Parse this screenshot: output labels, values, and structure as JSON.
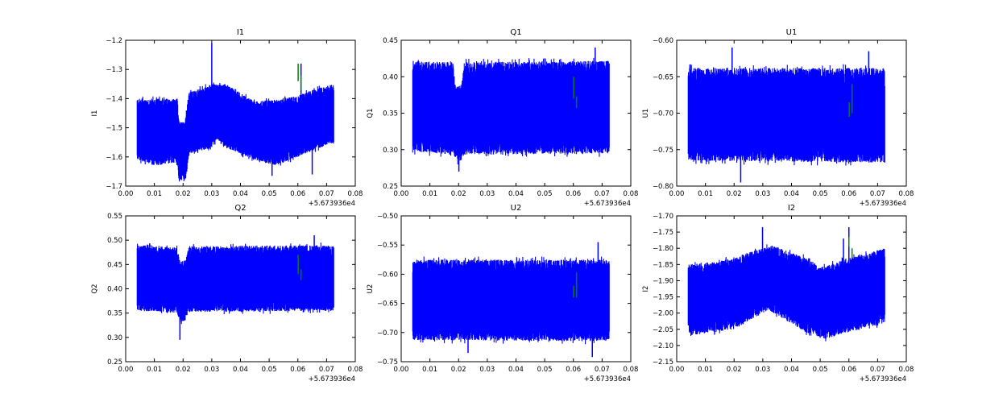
{
  "offset_label": "+5.673936e4",
  "colors": {
    "series": "#0000ff",
    "markers": "#008000",
    "axes": "#000000"
  },
  "chart_data": [
    {
      "type": "line",
      "title": "I1",
      "ylabel": "I1",
      "xlim": [
        0,
        0.08
      ],
      "ylim": [
        -1.7,
        -1.2
      ],
      "xticks": [
        "0.00",
        "0.01",
        "0.02",
        "0.03",
        "0.04",
        "0.05",
        "0.06",
        "0.07",
        "0.08"
      ],
      "yticks": [
        -1.7,
        -1.6,
        -1.5,
        -1.4,
        -1.3,
        -1.2
      ],
      "ytick_labels": [
        "−1.7",
        "−1.6",
        "−1.5",
        "−1.4",
        "−1.3",
        "−1.2"
      ],
      "x_range": [
        0.004,
        0.0725
      ],
      "upper": [
        [
          0.004,
          -1.4
        ],
        [
          0.018,
          -1.4
        ],
        [
          0.0185,
          -1.48
        ],
        [
          0.0205,
          -1.48
        ],
        [
          0.022,
          -1.38
        ],
        [
          0.03,
          -1.35
        ],
        [
          0.035,
          -1.35
        ],
        [
          0.045,
          -1.41
        ],
        [
          0.055,
          -1.4
        ],
        [
          0.06,
          -1.39
        ],
        [
          0.065,
          -1.37
        ],
        [
          0.0725,
          -1.35
        ]
      ],
      "lower": [
        [
          0.004,
          -1.61
        ],
        [
          0.01,
          -1.63
        ],
        [
          0.018,
          -1.62
        ],
        [
          0.0185,
          -1.68
        ],
        [
          0.021,
          -1.68
        ],
        [
          0.022,
          -1.59
        ],
        [
          0.03,
          -1.57
        ],
        [
          0.032,
          -1.54
        ],
        [
          0.035,
          -1.57
        ],
        [
          0.045,
          -1.61
        ],
        [
          0.052,
          -1.63
        ],
        [
          0.06,
          -1.6
        ],
        [
          0.065,
          -1.58
        ],
        [
          0.0725,
          -1.55
        ]
      ],
      "spikes": [
        [
          0.03,
          -1.21
        ],
        [
          0.0611,
          -1.28
        ],
        [
          0.065,
          -1.66
        ],
        [
          0.051,
          -1.665
        ]
      ],
      "green": [
        [
          0.0601,
          -1.28,
          -1.34
        ],
        [
          0.0611,
          -1.32,
          -1.37
        ]
      ]
    },
    {
      "type": "line",
      "title": "Q1",
      "ylabel": "Q1",
      "xlim": [
        0,
        0.08
      ],
      "ylim": [
        0.25,
        0.45
      ],
      "xticks": [
        "0.00",
        "0.01",
        "0.02",
        "0.03",
        "0.04",
        "0.05",
        "0.06",
        "0.07",
        "0.08"
      ],
      "yticks": [
        0.25,
        0.3,
        0.35,
        0.4,
        0.45
      ],
      "ytick_labels": [
        "0.25",
        "0.30",
        "0.35",
        "0.40",
        "0.45"
      ],
      "x_range": [
        0.004,
        0.0725
      ],
      "upper": [
        [
          0.004,
          0.422
        ],
        [
          0.018,
          0.42
        ],
        [
          0.019,
          0.385
        ],
        [
          0.021,
          0.39
        ],
        [
          0.022,
          0.42
        ],
        [
          0.0725,
          0.422
        ]
      ],
      "lower": [
        [
          0.004,
          0.298
        ],
        [
          0.018,
          0.293
        ],
        [
          0.02,
          0.28
        ],
        [
          0.022,
          0.293
        ],
        [
          0.0725,
          0.295
        ]
      ],
      "spikes": [
        [
          0.0676,
          0.44
        ],
        [
          0.0201,
          0.27
        ]
      ],
      "green": [
        [
          0.0601,
          0.4,
          0.37
        ],
        [
          0.0611,
          0.373,
          0.357
        ]
      ]
    },
    {
      "type": "line",
      "title": "U1",
      "ylabel": "U1",
      "xlim": [
        0,
        0.08
      ],
      "ylim": [
        -0.8,
        -0.6
      ],
      "xticks": [
        "0.00",
        "0.01",
        "0.02",
        "0.03",
        "0.04",
        "0.05",
        "0.06",
        "0.07",
        "0.08"
      ],
      "yticks": [
        -0.8,
        -0.75,
        -0.7,
        -0.65,
        -0.6
      ],
      "ytick_labels": [
        "−0.80",
        "−0.75",
        "−0.70",
        "−0.65",
        "−0.60"
      ],
      "x_range": [
        0.004,
        0.0725
      ],
      "upper": [
        [
          0.004,
          -0.638
        ],
        [
          0.0725,
          -0.638
        ]
      ],
      "lower": [
        [
          0.004,
          -0.765
        ],
        [
          0.0725,
          -0.768
        ]
      ],
      "spikes": [
        [
          0.0193,
          -0.61
        ],
        [
          0.0223,
          -0.795
        ],
        [
          0.0669,
          -0.615
        ]
      ],
      "green": [
        [
          0.0601,
          -0.685,
          -0.705
        ],
        [
          0.0611,
          -0.66,
          -0.7
        ]
      ]
    },
    {
      "type": "line",
      "title": "Q2",
      "ylabel": "Q2",
      "xlim": [
        0,
        0.08
      ],
      "ylim": [
        0.25,
        0.55
      ],
      "xticks": [
        "0.00",
        "0.01",
        "0.02",
        "0.03",
        "0.04",
        "0.05",
        "0.06",
        "0.07",
        "0.08"
      ],
      "yticks": [
        0.25,
        0.3,
        0.35,
        0.4,
        0.45,
        0.5,
        0.55
      ],
      "ytick_labels": [
        "0.25",
        "0.30",
        "0.35",
        "0.40",
        "0.45",
        "0.50",
        "0.55"
      ],
      "x_range": [
        0.004,
        0.0725
      ],
      "upper": [
        [
          0.004,
          0.49
        ],
        [
          0.018,
          0.485
        ],
        [
          0.019,
          0.455
        ],
        [
          0.021,
          0.46
        ],
        [
          0.022,
          0.488
        ],
        [
          0.0725,
          0.49
        ]
      ],
      "lower": [
        [
          0.004,
          0.355
        ],
        [
          0.018,
          0.35
        ],
        [
          0.019,
          0.33
        ],
        [
          0.021,
          0.335
        ],
        [
          0.022,
          0.352
        ],
        [
          0.0725,
          0.355
        ]
      ],
      "spikes": [
        [
          0.0189,
          0.295
        ],
        [
          0.0657,
          0.51
        ]
      ],
      "green": [
        [
          0.0601,
          0.47,
          0.43
        ],
        [
          0.0611,
          0.44,
          0.418
        ]
      ]
    },
    {
      "type": "line",
      "title": "U2",
      "ylabel": "U2",
      "xlim": [
        0,
        0.08
      ],
      "ylim": [
        -0.75,
        -0.5
      ],
      "xticks": [
        "0.00",
        "0.01",
        "0.02",
        "0.03",
        "0.04",
        "0.05",
        "0.06",
        "0.07",
        "0.08"
      ],
      "yticks": [
        -0.75,
        -0.7,
        -0.65,
        -0.6,
        -0.55,
        -0.5
      ],
      "ytick_labels": [
        "−0.75",
        "−0.70",
        "−0.65",
        "−0.60",
        "−0.55",
        "−0.50"
      ],
      "x_range": [
        0.004,
        0.0725
      ],
      "upper": [
        [
          0.004,
          -0.575
        ],
        [
          0.0725,
          -0.575
        ]
      ],
      "lower": [
        [
          0.004,
          -0.713
        ],
        [
          0.0725,
          -0.715
        ]
      ],
      "spikes": [
        [
          0.0686,
          -0.545
        ],
        [
          0.0666,
          -0.742
        ],
        [
          0.0233,
          -0.735
        ]
      ],
      "green": [
        [
          0.0601,
          -0.62,
          -0.64
        ],
        [
          0.0611,
          -0.597,
          -0.64
        ]
      ]
    },
    {
      "type": "line",
      "title": "I2",
      "ylabel": "I2",
      "xlim": [
        0,
        0.08
      ],
      "ylim": [
        -2.15,
        -1.7
      ],
      "xticks": [
        "0.00",
        "0.01",
        "0.02",
        "0.03",
        "0.04",
        "0.05",
        "0.06",
        "0.07",
        "0.08"
      ],
      "yticks": [
        -2.15,
        -2.1,
        -2.05,
        -2.0,
        -1.95,
        -1.9,
        -1.85,
        -1.8,
        -1.75,
        -1.7
      ],
      "ytick_labels": [
        "−2.15",
        "−2.10",
        "−2.05",
        "−2.00",
        "−1.95",
        "−1.90",
        "−1.85",
        "−1.80",
        "−1.75",
        "−1.70"
      ],
      "x_range": [
        0.004,
        0.0725
      ],
      "upper": [
        [
          0.004,
          -1.85
        ],
        [
          0.015,
          -1.84
        ],
        [
          0.03,
          -1.8
        ],
        [
          0.033,
          -1.79
        ],
        [
          0.045,
          -1.83
        ],
        [
          0.05,
          -1.86
        ],
        [
          0.06,
          -1.83
        ],
        [
          0.0725,
          -1.8
        ]
      ],
      "lower": [
        [
          0.004,
          -2.07
        ],
        [
          0.02,
          -2.05
        ],
        [
          0.032,
          -1.99
        ],
        [
          0.045,
          -2.06
        ],
        [
          0.052,
          -2.08
        ],
        [
          0.06,
          -2.06
        ],
        [
          0.0725,
          -2.03
        ]
      ],
      "spikes": [
        [
          0.0299,
          -1.735
        ],
        [
          0.06,
          -1.735
        ],
        [
          0.0581,
          -1.77
        ]
      ],
      "green": [
        [
          0.06,
          -1.765,
          -1.795
        ],
        [
          0.0611,
          -1.8,
          -1.83
        ]
      ]
    }
  ]
}
